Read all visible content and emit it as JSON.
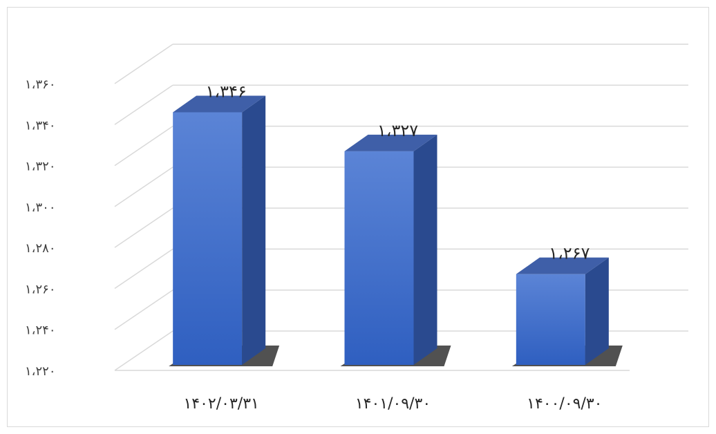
{
  "chart_data": {
    "type": "bar",
    "style": "3d-column",
    "categories": [
      "۱۴۰۲/۰۳/۳۱",
      "۱۴۰۱/۰۹/۳۰",
      "۱۴۰۰/۰۹/۳۰"
    ],
    "values": [
      1346,
      1327,
      1267
    ],
    "value_labels": [
      "۱،۳۴۶",
      "۱،۳۲۷",
      "۱،۲۶۷"
    ],
    "title": "",
    "xlabel": "",
    "ylabel": "",
    "ylim": [
      1220,
      1360
    ],
    "yticks": [
      1220,
      1240,
      1260,
      1280,
      1300,
      1320,
      1340,
      1360
    ],
    "ytick_labels": [
      "۱،۲۲۰",
      "۱،۲۴۰",
      "۱،۲۶۰",
      "۱،۲۸۰",
      "۱،۳۰۰",
      "۱،۳۲۰",
      "۱،۳۴۰",
      "۱،۳۶۰"
    ],
    "grid": true,
    "legend": "none",
    "colors": {
      "bar_front_top": "#5b84d6",
      "bar_front_bottom": "#2f5fc0",
      "bar_side": "#2a4a8f",
      "bar_top": "#3f5fa8",
      "gridline": "#d9d9d9",
      "shadow": "#333333"
    }
  }
}
